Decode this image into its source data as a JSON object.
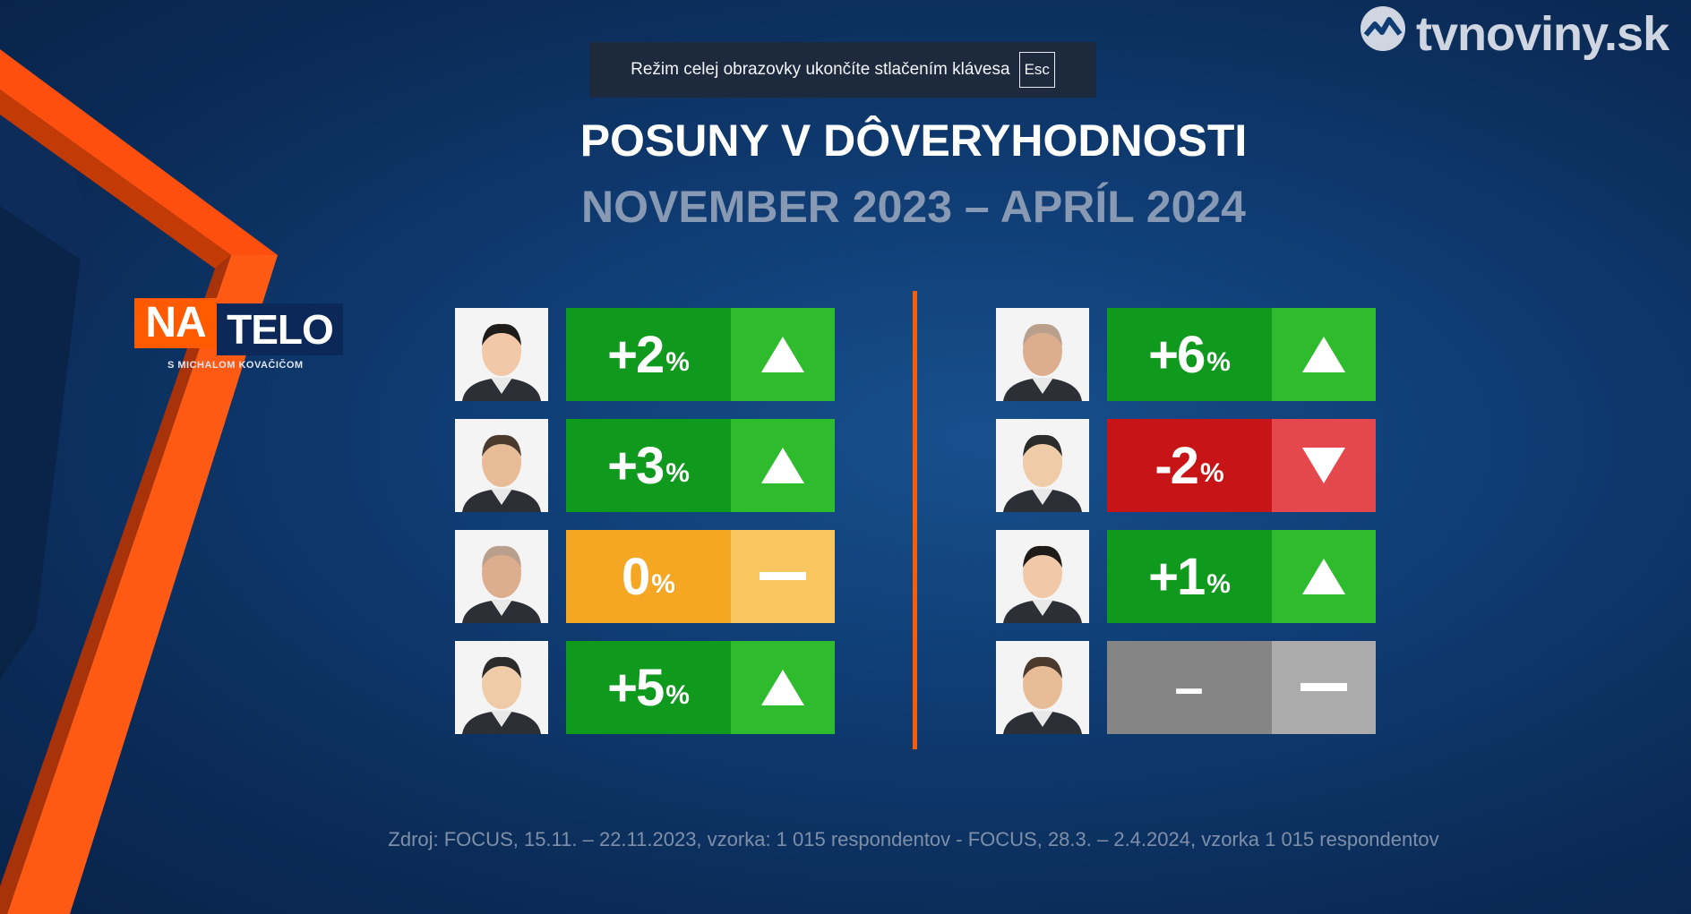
{
  "fullscreen_notice": {
    "text": "Režim celej obrazovky ukončíte stlačením klávesa",
    "key": "Esc"
  },
  "brand": {
    "name": "tvnoviny.sk",
    "icon": "tvnoviny-logo-icon"
  },
  "show_logo": {
    "part1": "NA",
    "part2": "TELO",
    "subtitle": "S MICHALOM KOVAČIČOM"
  },
  "title": "POSUNY V DÔVERYHODNOSTI",
  "subtitle": "NOVEMBER 2023 – APRÍL 2024",
  "colors": {
    "up": "#0f9a1e",
    "down": "#c71416",
    "neutral": "#f5a623",
    "none": "#858585",
    "accent": "#ff5a00"
  },
  "left_column": [
    {
      "value": "+2",
      "unit": "%",
      "trend": "up",
      "icon": "arrow-up-icon"
    },
    {
      "value": "+3",
      "unit": "%",
      "trend": "up",
      "icon": "arrow-up-icon"
    },
    {
      "value": "0",
      "unit": "%",
      "trend": "neutral",
      "icon": "dash-icon"
    },
    {
      "value": "+5",
      "unit": "%",
      "trend": "up",
      "icon": "arrow-up-icon"
    }
  ],
  "right_column": [
    {
      "value": "+6",
      "unit": "%",
      "trend": "up",
      "icon": "arrow-up-icon"
    },
    {
      "value": "-2",
      "unit": "%",
      "trend": "down",
      "icon": "arrow-down-icon"
    },
    {
      "value": "+1",
      "unit": "%",
      "trend": "up",
      "icon": "arrow-up-icon"
    },
    {
      "value": "–",
      "unit": "",
      "trend": "none",
      "icon": "dash-icon"
    }
  ],
  "source": "Zdroj: FOCUS, 15.11. – 22.11.2023, vzorka: 1 015 respondentov - FOCUS, 28.3. – 2.4.2024, vzorka 1 015 respondentov"
}
